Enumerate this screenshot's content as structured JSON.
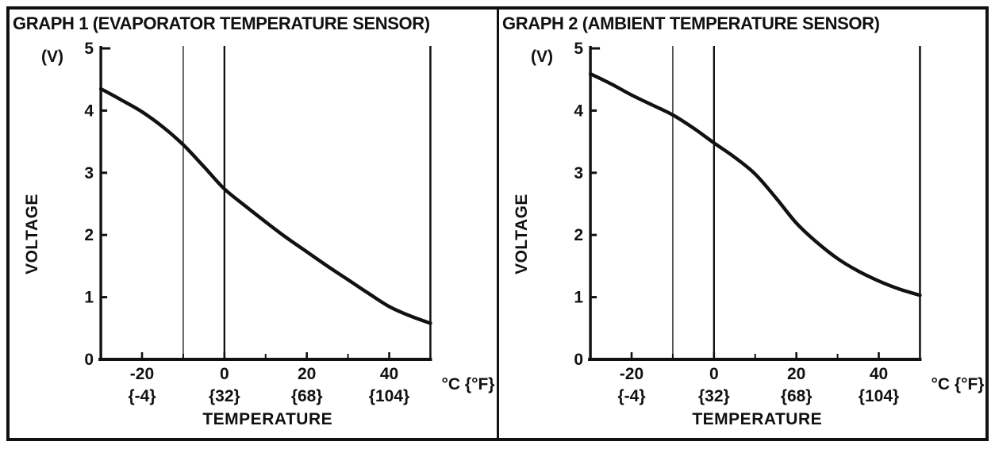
{
  "figure": {
    "background_color": "#ffffff",
    "border_color": "#111111",
    "ink_color": "#111111"
  },
  "graphs": [
    {
      "title": "GRAPH 1 (EVAPORATOR TEMPERATURE SENSOR)",
      "y_unit_label": "(V)",
      "y_axis_label": "VOLTAGE",
      "x_axis_label": "TEMPERATURE",
      "x_unit_label": "°C {°F}"
    },
    {
      "title": "GRAPH 2 (AMBIENT TEMPERATURE SENSOR)",
      "y_unit_label": "(V)",
      "y_axis_label": "VOLTAGE",
      "x_axis_label": "TEMPERATURE",
      "x_unit_label": "°C {°F}"
    }
  ],
  "chart_data": [
    {
      "type": "line",
      "title": "GRAPH 1 (EVAPORATOR TEMPERATURE SENSOR)",
      "xlabel": "TEMPERATURE",
      "ylabel": "VOLTAGE",
      "x_unit": "°C {°F}",
      "y_unit": "V",
      "xlim": [
        -30,
        50
      ],
      "ylim": [
        0,
        5
      ],
      "grid": false,
      "legend": "none",
      "x": [
        -30,
        -25,
        -20,
        -15,
        -10,
        -5,
        0,
        5,
        10,
        15,
        20,
        25,
        30,
        35,
        40,
        45,
        50
      ],
      "y": [
        4.35,
        4.17,
        3.98,
        3.74,
        3.45,
        3.1,
        2.74,
        2.47,
        2.21,
        1.96,
        1.73,
        1.5,
        1.28,
        1.06,
        0.85,
        0.7,
        0.58
      ],
      "yticks": [
        0,
        1,
        2,
        3,
        4,
        5
      ],
      "xticks": [
        {
          "value": -20,
          "celsius": "-20",
          "fahrenheit": "{-4}"
        },
        {
          "value": 0,
          "celsius": "0",
          "fahrenheit": "{32}"
        },
        {
          "value": 20,
          "celsius": "20",
          "fahrenheit": "{68}"
        },
        {
          "value": 40,
          "celsius": "40",
          "fahrenheit": "{104}"
        }
      ],
      "xticks_minor": [
        -10,
        10,
        30,
        50
      ],
      "reference_lines_x": [
        -10,
        0
      ],
      "right_border_x": 50,
      "line_color": "#111111"
    },
    {
      "type": "line",
      "title": "GRAPH 2 (AMBIENT TEMPERATURE SENSOR)",
      "xlabel": "TEMPERATURE",
      "ylabel": "VOLTAGE",
      "x_unit": "°C {°F}",
      "y_unit": "V",
      "xlim": [
        -30,
        50
      ],
      "ylim": [
        0,
        5
      ],
      "grid": false,
      "legend": "none",
      "x": [
        -30,
        -25,
        -20,
        -15,
        -10,
        -5,
        0,
        5,
        10,
        15,
        20,
        25,
        30,
        35,
        40,
        45,
        50
      ],
      "y": [
        4.59,
        4.43,
        4.25,
        4.09,
        3.93,
        3.72,
        3.48,
        3.25,
        2.98,
        2.6,
        2.19,
        1.88,
        1.62,
        1.42,
        1.26,
        1.13,
        1.03
      ],
      "yticks": [
        0,
        1,
        2,
        3,
        4,
        5
      ],
      "xticks": [
        {
          "value": -20,
          "celsius": "-20",
          "fahrenheit": "{-4}"
        },
        {
          "value": 0,
          "celsius": "0",
          "fahrenheit": "{32}"
        },
        {
          "value": 20,
          "celsius": "20",
          "fahrenheit": "{68}"
        },
        {
          "value": 40,
          "celsius": "40",
          "fahrenheit": "{104}"
        }
      ],
      "xticks_minor": [
        -10,
        10,
        30,
        50
      ],
      "reference_lines_x": [
        -10,
        0
      ],
      "right_border_x": 50,
      "line_color": "#111111"
    }
  ]
}
